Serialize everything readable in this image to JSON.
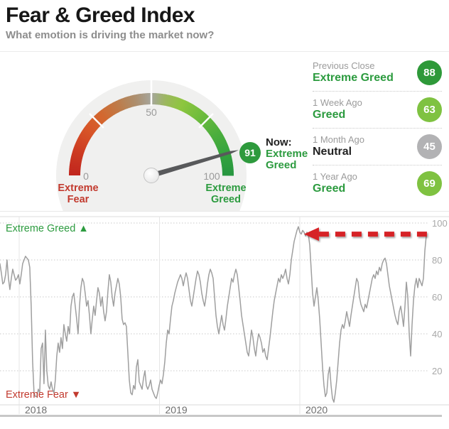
{
  "header": {
    "title": "Fear & Greed Index",
    "subtitle": "What emotion is driving the market now?"
  },
  "gauge": {
    "value": 91,
    "min": 0,
    "max": 100,
    "tick_labels": [
      "0",
      "50",
      "100"
    ],
    "white_tick_values": [
      25,
      50,
      75
    ],
    "min_label_line1": "Extreme",
    "min_label_line2": "Fear",
    "max_label_line1": "Extreme",
    "max_label_line2": "Greed",
    "now_label": "Now:",
    "now_line1": "Extreme",
    "now_line2": "Greed",
    "badge_color": "#2e9a3d",
    "min_label_color": "#c23a2e",
    "max_label_color": "#2c9b3f",
    "background_circle_color": "#f0f0ef",
    "gradient_stops": [
      [
        0.0,
        "#c1261e"
      ],
      [
        0.1,
        "#cd3c22"
      ],
      [
        0.2,
        "#d85628"
      ],
      [
        0.28,
        "#d3682f"
      ],
      [
        0.36,
        "#bd7c4a"
      ],
      [
        0.44,
        "#ab9071"
      ],
      [
        0.5,
        "#a6a69c"
      ],
      [
        0.56,
        "#9cb75e"
      ],
      [
        0.63,
        "#8ec63f"
      ],
      [
        0.72,
        "#6fbc3d"
      ],
      [
        0.82,
        "#4cae3d"
      ],
      [
        0.92,
        "#33a23e"
      ],
      [
        1.0,
        "#289740"
      ]
    ]
  },
  "panel": {
    "rows": [
      {
        "label": "Previous Close",
        "sentiment": "Extreme Greed",
        "sentiment_color": "#2c9b3f",
        "value": "88",
        "badge_color": "#2e9939"
      },
      {
        "label": "1 Week Ago",
        "sentiment": "Greed",
        "sentiment_color": "#2c9b3f",
        "value": "63",
        "badge_color": "#7fc241"
      },
      {
        "label": "1 Month Ago",
        "sentiment": "Neutral",
        "sentiment_color": "#222222",
        "value": "45",
        "badge_color": "#b2b2b4"
      },
      {
        "label": "1 Year Ago",
        "sentiment": "Greed",
        "sentiment_color": "#2c9b3f",
        "value": "69",
        "badge_color": "#7fc241"
      }
    ]
  },
  "chart_data": {
    "type": "line",
    "series_name": "Fear & Greed Index history",
    "greed_label": "Extreme Greed ▲",
    "fear_label": "Extreme Fear ▼",
    "greed_label_color": "#2c9b3f",
    "fear_label_color": "#c23a2e",
    "line_color": "#9f9f9f",
    "grid_on": true,
    "ylim": [
      0,
      100
    ],
    "y_ticks": [
      100,
      80,
      60,
      40,
      20
    ],
    "x_tick_labels": [
      "2018",
      "2019",
      "2020"
    ],
    "x_tick_years": [
      2018,
      2019,
      2020
    ],
    "x_start_year": 2017.863,
    "x_step_years": 0.010127,
    "annotation": {
      "type": "arrow",
      "color": "#d62127",
      "meaning": "current level points back to early-2020 record high",
      "y_value": 94,
      "x_from_year": 2020.92,
      "x_to_year": 2020.03
    },
    "values": [
      78,
      73,
      67,
      68,
      72,
      80,
      70,
      64,
      70,
      75,
      72,
      69,
      70,
      72,
      67,
      72,
      78,
      80,
      82,
      81,
      80,
      76,
      55,
      25,
      8,
      6,
      6,
      10,
      8,
      32,
      35,
      13,
      42,
      20,
      12,
      10,
      14,
      10,
      8,
      15,
      28,
      35,
      30,
      38,
      32,
      45,
      40,
      36,
      44,
      40,
      55,
      60,
      62,
      55,
      48,
      40,
      55,
      65,
      70,
      68,
      62,
      55,
      58,
      50,
      40,
      48,
      55,
      50,
      58,
      65,
      62,
      55,
      60,
      52,
      47,
      52,
      63,
      72,
      68,
      60,
      55,
      62,
      66,
      70,
      67,
      60,
      48,
      45,
      46,
      44,
      30,
      15,
      8,
      7,
      12,
      10,
      22,
      26,
      14,
      12,
      10,
      16,
      20,
      12,
      10,
      12,
      15,
      10,
      8,
      6,
      5,
      8,
      12,
      15,
      13,
      18,
      25,
      35,
      42,
      40,
      48,
      55,
      58,
      62,
      65,
      68,
      70,
      72,
      70,
      66,
      70,
      73,
      70,
      64,
      58,
      55,
      60,
      65,
      70,
      74,
      72,
      68,
      62,
      58,
      55,
      60,
      67,
      72,
      75,
      73,
      70,
      60,
      50,
      44,
      40,
      45,
      50,
      45,
      42,
      48,
      55,
      60,
      65,
      70,
      68,
      72,
      75,
      72,
      65,
      58,
      50,
      45,
      40,
      35,
      30,
      28,
      35,
      42,
      38,
      32,
      28,
      35,
      40,
      38,
      35,
      30,
      32,
      28,
      26,
      32,
      38,
      45,
      52,
      58,
      62,
      66,
      70,
      68,
      72,
      70,
      72,
      75,
      70,
      67,
      72,
      80,
      85,
      90,
      93,
      96,
      98,
      95,
      94,
      96,
      95,
      93,
      95,
      94,
      88,
      75,
      62,
      55,
      60,
      65,
      58,
      48,
      35,
      22,
      12,
      6,
      8,
      18,
      22,
      12,
      5,
      3,
      8,
      15,
      25,
      35,
      42,
      45,
      43,
      47,
      52,
      48,
      44,
      50,
      55,
      60,
      65,
      70,
      68,
      60,
      56,
      54,
      52,
      56,
      54,
      58,
      62,
      66,
      70,
      72,
      70,
      74,
      72,
      76,
      74,
      78,
      80,
      81,
      78,
      72,
      66,
      62,
      58,
      54,
      50,
      47,
      45,
      52,
      55,
      50,
      44,
      55,
      68,
      60,
      40,
      28,
      45,
      58,
      66,
      70,
      65,
      70,
      68,
      66,
      70,
      85,
      93
    ]
  }
}
